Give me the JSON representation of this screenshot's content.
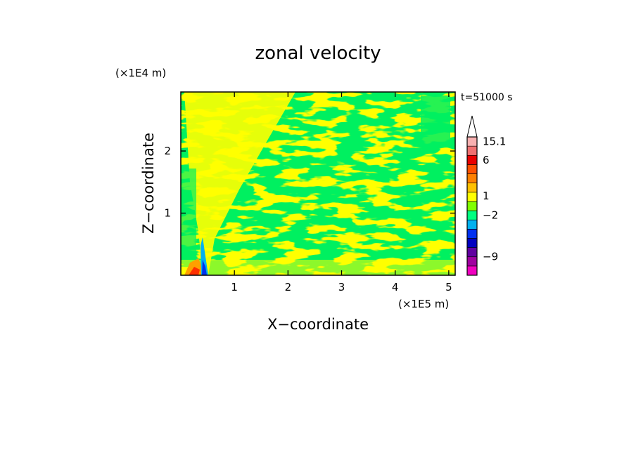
{
  "chart_data": {
    "type": "heatmap",
    "title": "zonal velocity",
    "time_label": "t=51000 s",
    "xlabel": "X−coordinate",
    "ylabel": "Z−coordinate",
    "x_scale_label": "(×1E5 m)",
    "y_scale_label": "(×1E4 m)",
    "xlim": [
      0,
      5.12
    ],
    "ylim": [
      0,
      2.95
    ],
    "x_ticks": [
      {
        "value": 1,
        "label": "1"
      },
      {
        "value": 2,
        "label": "2"
      },
      {
        "value": 3,
        "label": "3"
      },
      {
        "value": 4,
        "label": "4"
      },
      {
        "value": 5,
        "label": "5"
      }
    ],
    "y_ticks": [
      {
        "value": 1,
        "label": "1"
      },
      {
        "value": 2,
        "label": "2"
      }
    ],
    "colorbar": {
      "levels": [
        {
          "color": "#f000c0"
        },
        {
          "color": "#a000a0"
        },
        {
          "color": "#6000a0"
        },
        {
          "color": "#0000c0"
        },
        {
          "color": "#0030f0"
        },
        {
          "color": "#00b0f0"
        },
        {
          "color": "#00ff80"
        },
        {
          "color": "#80ff00"
        },
        {
          "color": "#ffff00"
        },
        {
          "color": "#ffc000"
        },
        {
          "color": "#ff8000"
        },
        {
          "color": "#ff5000"
        },
        {
          "color": "#e80000"
        },
        {
          "color": "#f07070"
        },
        {
          "color": "#f8b0b0"
        },
        {
          "color": "#ffffff"
        }
      ],
      "labels": [
        {
          "text": "15.1",
          "level": 14.5
        },
        {
          "text": "6",
          "level": 12.5
        },
        {
          "text": "1",
          "level": 8.6
        },
        {
          "text": "−2",
          "level": 6.5
        },
        {
          "text": "−9",
          "level": 2.0
        }
      ]
    },
    "dominant_colors": {
      "negative_small": "#00f060",
      "positive_small": "#ffff00",
      "positive_medium": "#ffa000",
      "negative_large": "#0040ff"
    }
  }
}
